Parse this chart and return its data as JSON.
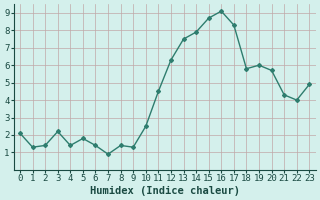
{
  "x": [
    0,
    1,
    2,
    3,
    4,
    5,
    6,
    7,
    8,
    9,
    10,
    11,
    12,
    13,
    14,
    15,
    16,
    17,
    18,
    19,
    20,
    21,
    22,
    23
  ],
  "y": [
    2.1,
    1.3,
    1.4,
    2.2,
    1.4,
    1.8,
    1.4,
    0.9,
    1.4,
    1.3,
    2.5,
    4.5,
    6.3,
    7.5,
    7.9,
    8.7,
    9.1,
    8.3,
    5.8,
    6.0,
    5.7,
    4.3,
    4.0,
    4.9
  ],
  "line_color": "#2e7d6e",
  "marker": "D",
  "marker_size": 2,
  "bg_color": "#d4f0ec",
  "grid_color": "#c0a8a8",
  "xlabel": "Humidex (Indice chaleur)",
  "xlim": [
    -0.5,
    23.5
  ],
  "ylim": [
    0,
    9.5
  ],
  "yticks": [
    1,
    2,
    3,
    4,
    5,
    6,
    7,
    8,
    9
  ],
  "xticks": [
    0,
    1,
    2,
    3,
    4,
    5,
    6,
    7,
    8,
    9,
    10,
    11,
    12,
    13,
    14,
    15,
    16,
    17,
    18,
    19,
    20,
    21,
    22,
    23
  ],
  "tick_fontsize": 6.5,
  "xlabel_fontsize": 7.5,
  "linewidth": 1.0
}
